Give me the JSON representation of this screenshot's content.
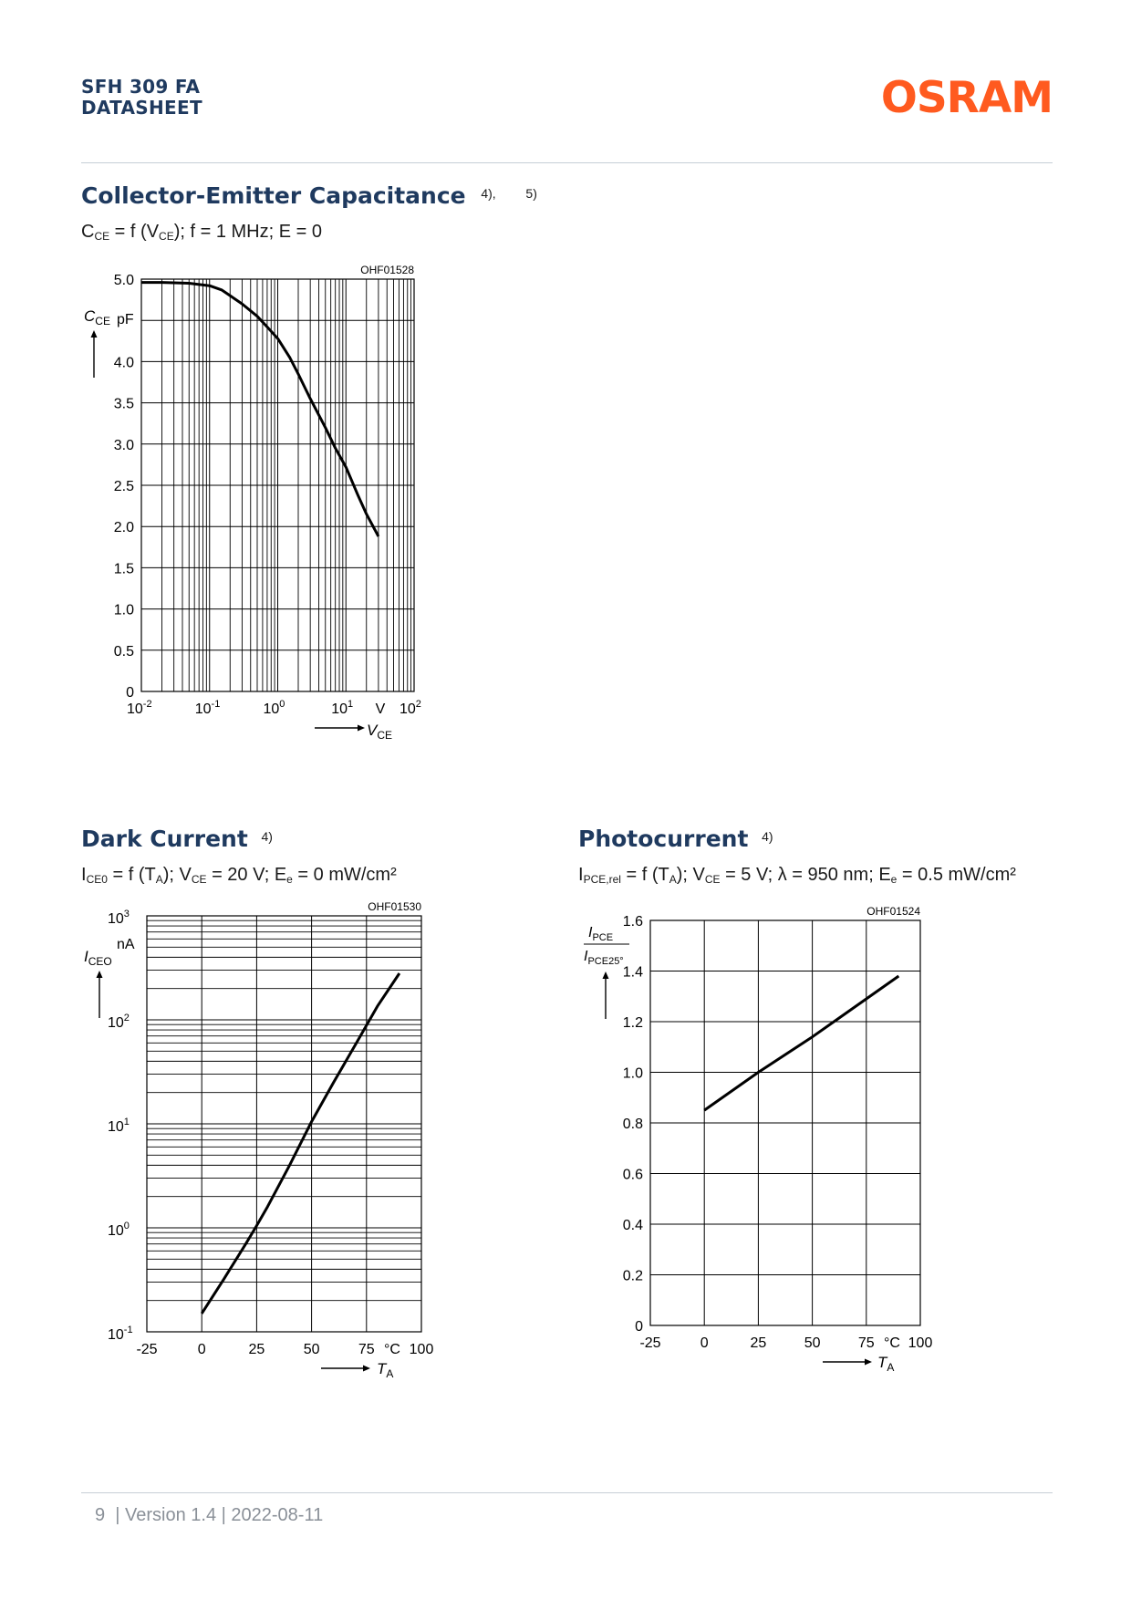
{
  "header": {
    "product": "SFH 309 FA",
    "doctype": "DATASHEET",
    "logo_text": "OSRAM",
    "brand_color": "#ff5a1f",
    "title_color": "#1f3a5f"
  },
  "footer": {
    "page": "9",
    "text": "| Version 1.4 | 2022-08-11"
  },
  "sections": {
    "capacitance": {
      "title": "Collector-Emitter Capacitance",
      "notes": [
        "4),",
        "5)"
      ],
      "formula": {
        "a": "C",
        "a_sub": "CE",
        "b": " = f (V",
        "b_sub": "CE",
        "c": "); f = 1 MHz; E = 0"
      }
    },
    "dark_current": {
      "title": "Dark Current",
      "notes": [
        "4)"
      ],
      "formula": {
        "a": "I",
        "a_sub": "CE0",
        "b": " = f (T",
        "b_sub": "A",
        "c": "); V",
        "c_sub": "CE",
        "d": " = 20 V; E",
        "d_sub": "e",
        "e": " = 0 mW/cm²"
      }
    },
    "photocurrent": {
      "title": "Photocurrent",
      "notes": [
        "4)"
      ],
      "formula": {
        "a": "I",
        "a_sub": "PCE,rel",
        "b": " = f (T",
        "b_sub": "A",
        "c": "); V",
        "c_sub": "CE",
        "d": " = 5 V; λ = 950 nm; E",
        "d_sub": "e",
        "e": " = 0.5 mW/cm²"
      }
    }
  },
  "chart_data": [
    {
      "id": "OHF01528",
      "type": "line",
      "scale": {
        "x": "log",
        "y": "linear"
      },
      "xlim": [
        0.01,
        100
      ],
      "ylim": [
        0,
        5.0
      ],
      "x_ticks": [
        0.01,
        0.1,
        1,
        10,
        100
      ],
      "x_tick_labels": [
        {
          "base": "10",
          "exp": "-2"
        },
        {
          "base": "10",
          "exp": "-1"
        },
        {
          "base": "10",
          "exp": "0"
        },
        {
          "base": "10",
          "exp": "1"
        },
        {
          "base": "10",
          "exp": "2"
        }
      ],
      "x_unit": "V",
      "y_ticks": [
        0,
        0.5,
        1.0,
        1.5,
        2.0,
        2.5,
        3.0,
        3.5,
        4.0,
        4.5,
        5.0
      ],
      "y_tick_labels": [
        "0",
        "0.5",
        "1.0",
        "1.5",
        "2.0",
        "2.5",
        "3.0",
        "3.5",
        "4.0",
        "",
        "5.0"
      ],
      "y_unit": "pF",
      "xlabel": {
        "main": "V",
        "sub": "CE"
      },
      "ylabel": {
        "main": "C",
        "sub": "CE"
      },
      "grid": true,
      "series": [
        {
          "x": [
            0.01,
            0.02,
            0.05,
            0.1,
            0.15,
            0.2,
            0.3,
            0.5,
            0.7,
            1,
            1.5,
            2,
            3,
            5,
            7,
            10,
            15,
            20,
            30
          ],
          "y": [
            4.96,
            4.96,
            4.95,
            4.92,
            4.87,
            4.8,
            4.7,
            4.55,
            4.42,
            4.28,
            4.05,
            3.85,
            3.55,
            3.2,
            2.95,
            2.72,
            2.38,
            2.15,
            1.88
          ]
        }
      ]
    },
    {
      "id": "OHF01530",
      "type": "line",
      "scale": {
        "x": "linear",
        "y": "log"
      },
      "xlim": [
        -25,
        100
      ],
      "ylim": [
        0.1,
        1000
      ],
      "x_ticks": [
        -25,
        0,
        25,
        50,
        75,
        100
      ],
      "x_tick_labels": [
        "-25",
        "0",
        "25",
        "50",
        "75",
        "100"
      ],
      "x_unit": "°C",
      "y_ticks": [
        0.1,
        1,
        10,
        100,
        1000
      ],
      "y_tick_labels": [
        {
          "base": "10",
          "exp": "-1"
        },
        {
          "base": "10",
          "exp": "0"
        },
        {
          "base": "10",
          "exp": "1"
        },
        {
          "base": "10",
          "exp": "2"
        },
        {
          "base": "10",
          "exp": "3"
        }
      ],
      "y_unit": "nA",
      "xlabel": {
        "main": "T",
        "sub": "A"
      },
      "ylabel": {
        "main": "I",
        "sub": "CEO"
      },
      "grid": true,
      "series": [
        {
          "x": [
            0,
            10,
            20,
            25,
            30,
            40,
            50,
            60,
            70,
            80,
            90
          ],
          "y": [
            0.15,
            0.32,
            0.7,
            1.05,
            1.6,
            4.0,
            10.5,
            25,
            58,
            135,
            280
          ]
        }
      ]
    },
    {
      "id": "OHF01524",
      "type": "line",
      "scale": {
        "x": "linear",
        "y": "linear"
      },
      "xlim": [
        -25,
        100
      ],
      "ylim": [
        0,
        1.6
      ],
      "x_ticks": [
        -25,
        0,
        25,
        50,
        75,
        100
      ],
      "x_tick_labels": [
        "-25",
        "0",
        "25",
        "50",
        "75",
        "100"
      ],
      "x_unit": "°C",
      "y_ticks": [
        0,
        0.2,
        0.4,
        0.6,
        0.8,
        1.0,
        1.2,
        1.4,
        1.6
      ],
      "y_tick_labels": [
        "0",
        "0.2",
        "0.4",
        "0.6",
        "0.8",
        "1.0",
        "1.2",
        "1.4",
        "1.6"
      ],
      "xlabel": {
        "main": "T",
        "sub": "A"
      },
      "ylabel": {
        "num_main": "I",
        "num_sub": "PCE",
        "den_main": "I",
        "den_sub": "PCE25°"
      },
      "grid": true,
      "series": [
        {
          "x": [
            0,
            25,
            50,
            60,
            75,
            90
          ],
          "y": [
            0.85,
            1.0,
            1.14,
            1.2,
            1.29,
            1.38
          ]
        }
      ]
    }
  ]
}
